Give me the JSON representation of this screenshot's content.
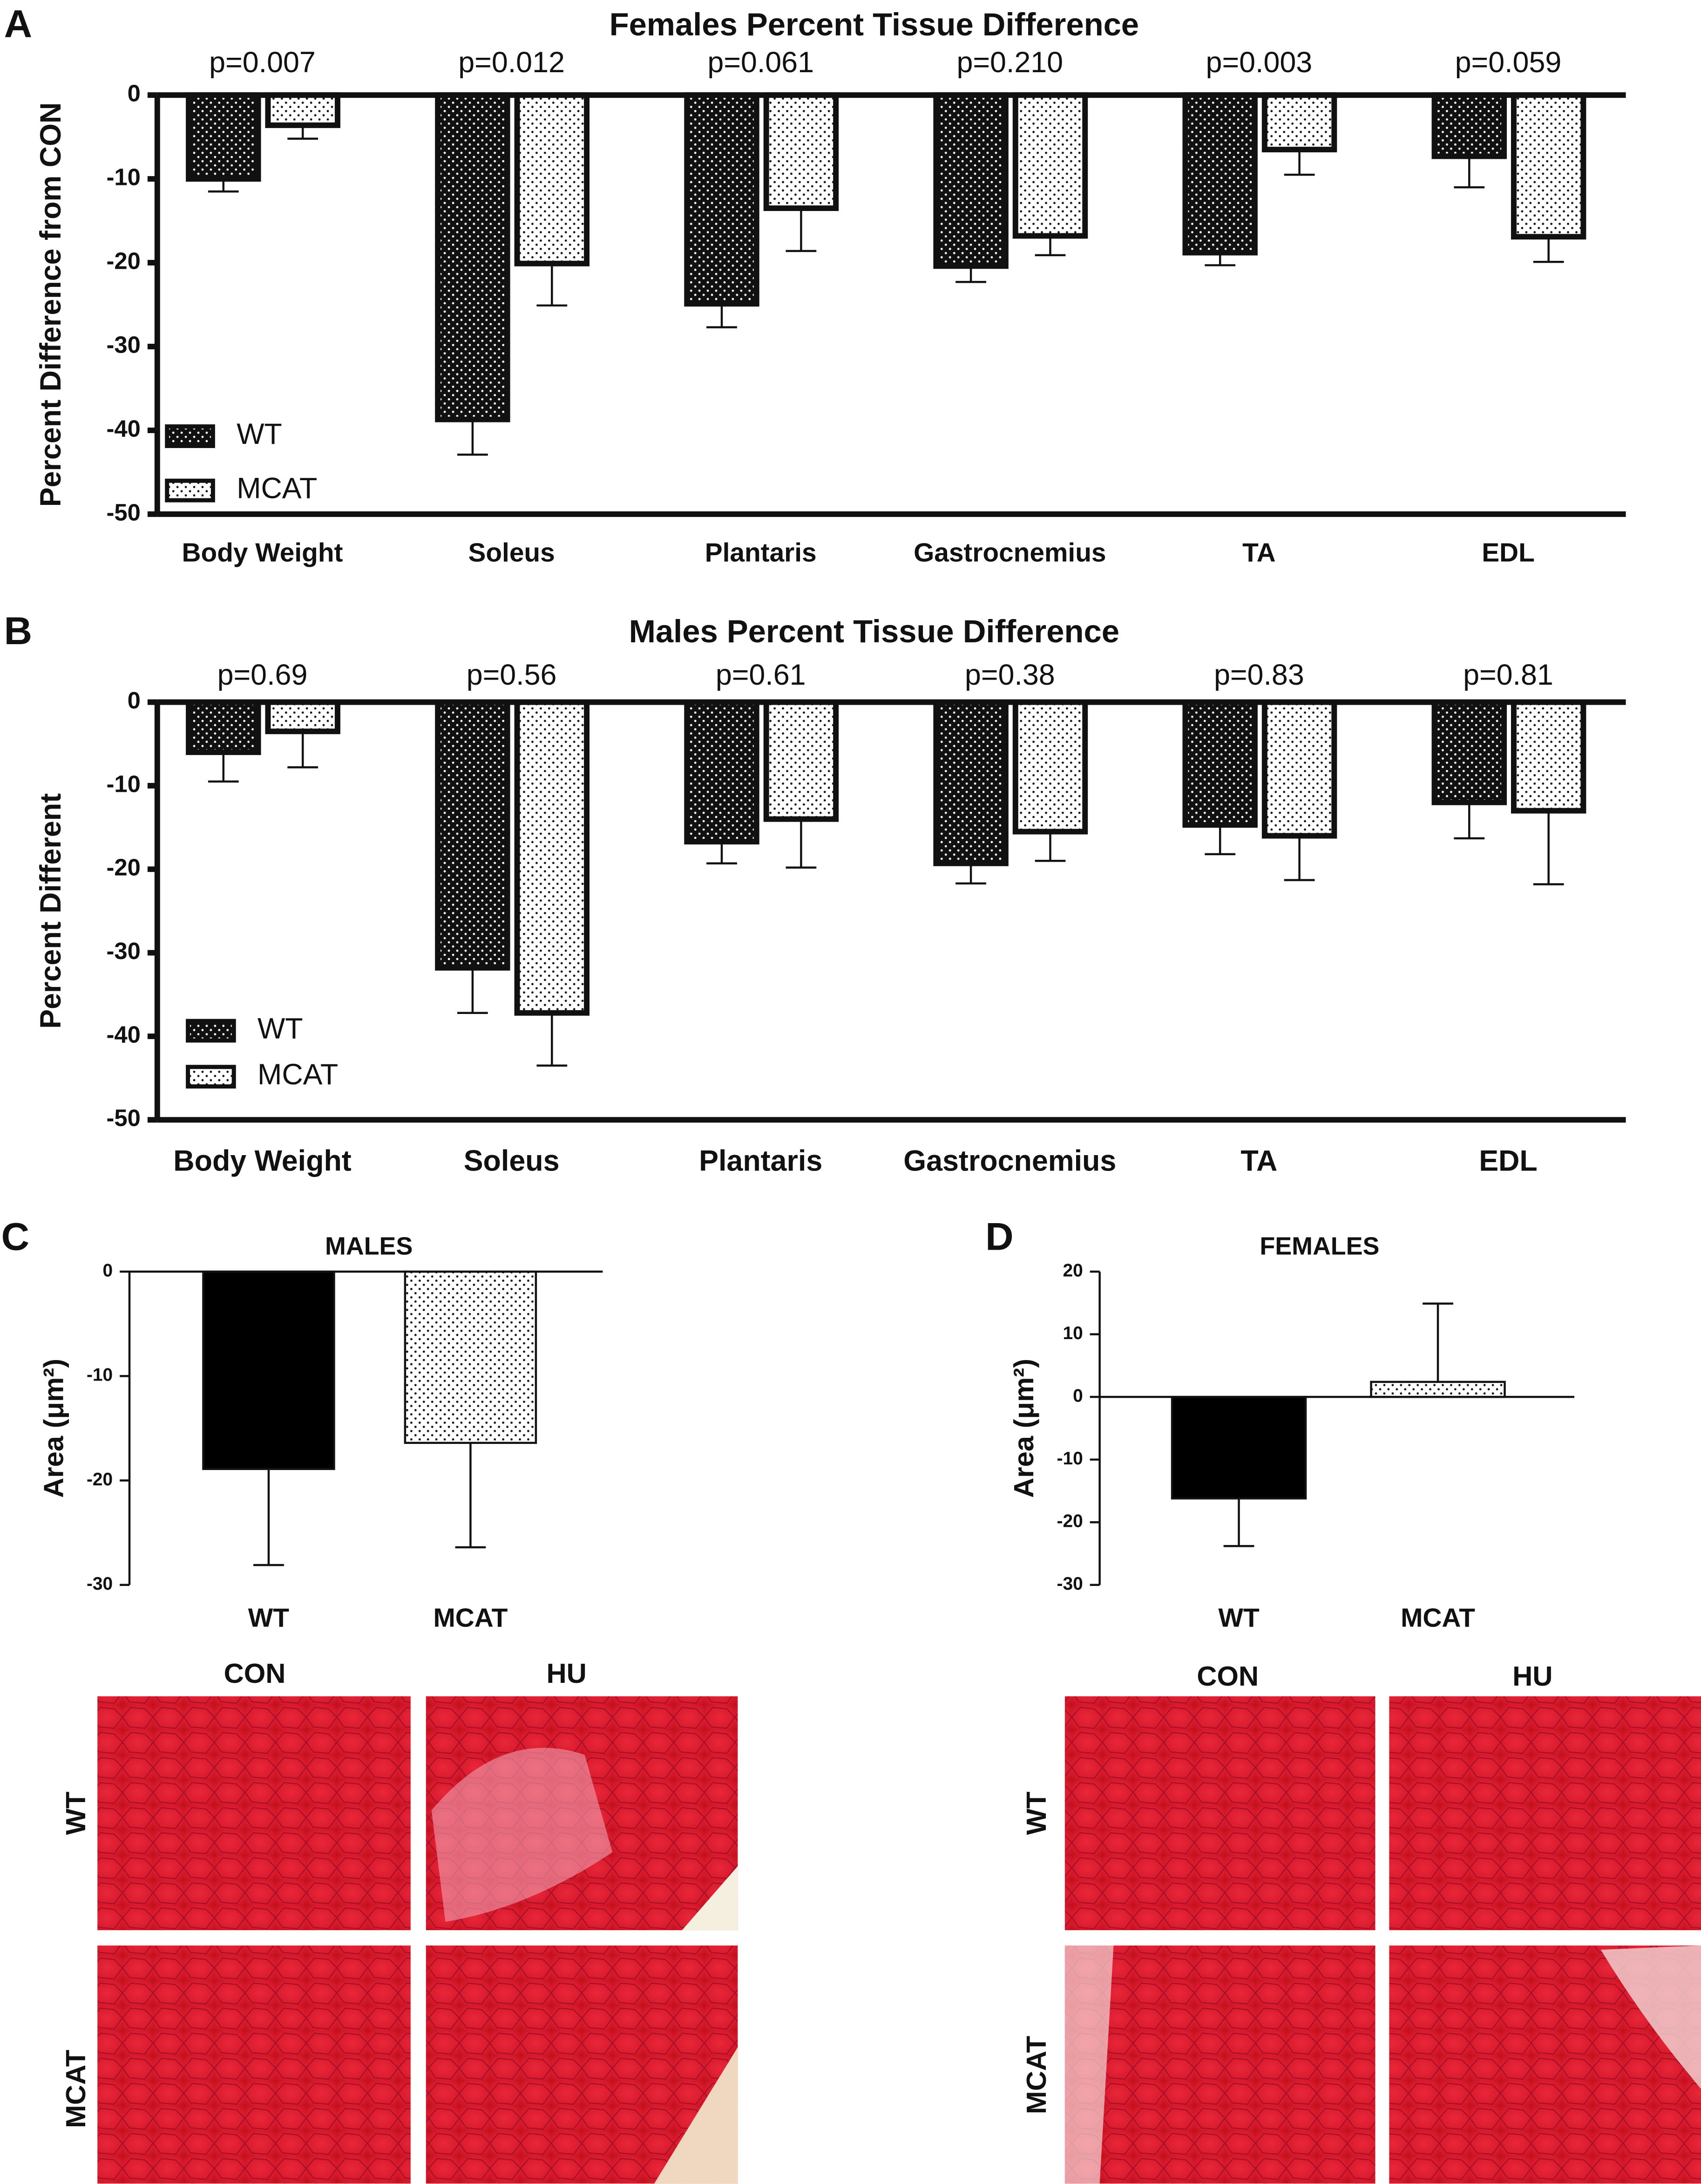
{
  "chart_data": [
    {
      "type": "bar",
      "label": "A",
      "title": "Females Percent Tissue Difference",
      "y_label": "Percent Difference from CON",
      "categories": [
        "Body Weight",
        "Soleus",
        "Plantaris",
        "Gastrocnemius",
        "TA",
        "EDL"
      ],
      "annotations": [
        "p=0.007",
        "p=0.012",
        "p=0.061",
        "p=0.210",
        "p=0.003",
        "p=0.059"
      ],
      "series": [
        {
          "name": "WT",
          "color": "#111111",
          "dot_color": "#ffffff",
          "values": [
            -10,
            -38.7,
            -24.9,
            -20.4,
            -18.8,
            -7.3
          ],
          "errors": [
            1.5,
            4.2,
            2.8,
            1.9,
            1.5,
            3.7
          ]
        },
        {
          "name": "MCAT",
          "color": "#ffffff",
          "dot_color": "#111111",
          "values": [
            -3.6,
            -20.1,
            -13.5,
            -16.8,
            -6.5,
            -16.9
          ],
          "errors": [
            1.6,
            5,
            5.1,
            2.3,
            3,
            3
          ]
        }
      ],
      "ylim": [
        -50,
        0
      ],
      "yticks": [
        0,
        -10,
        -20,
        -30,
        -40,
        -50
      ],
      "legend": "bottom-left"
    },
    {
      "type": "bar",
      "label": "B",
      "title": "Males Percent Tissue Difference",
      "y_label": "Percent Different",
      "categories": [
        "Body Weight",
        "Soleus",
        "Plantaris",
        "Gastrocnemius",
        "TA",
        "EDL"
      ],
      "annotations": [
        "p=0.69",
        "p=0.56",
        "p=0.61",
        "p=0.38",
        "p=0.83",
        "p=0.81"
      ],
      "series": [
        {
          "name": "WT",
          "color": "#111111",
          "dot_color": "#ffffff",
          "values": [
            -6,
            -31.8,
            -16.7,
            -19.3,
            -14.7,
            -12
          ],
          "errors": [
            3.5,
            5.4,
            2.6,
            2.4,
            3.5,
            4.3
          ]
        },
        {
          "name": "MCAT",
          "color": "#ffffff",
          "dot_color": "#111111",
          "values": [
            -3.5,
            -37.2,
            -14,
            -15.5,
            -16,
            -13
          ],
          "errors": [
            4.3,
            6.3,
            5.8,
            3.5,
            5.3,
            8.8
          ]
        }
      ],
      "ylim": [
        -50,
        0
      ],
      "yticks": [
        0,
        -10,
        -20,
        -30,
        -40,
        -50
      ],
      "legend": "bottom-left"
    },
    {
      "type": "bar",
      "label": "C",
      "title": "MALES",
      "y_label": "Area (μm²)",
      "categories": [
        "WT",
        "MCAT"
      ],
      "series": [
        {
          "colors": [
            "#000000",
            "#ffffff"
          ],
          "dot_colors": [
            "#000000",
            "#111111"
          ],
          "values": [
            -18.9,
            -16.4
          ],
          "errors": [
            9.2,
            10
          ]
        }
      ],
      "ylim": [
        -30,
        0
      ],
      "yticks": [
        0,
        -10,
        -20,
        -30
      ]
    },
    {
      "type": "bar",
      "label": "D",
      "title": "FEMALES",
      "y_label": "Area (μm²)",
      "categories": [
        "WT",
        "MCAT"
      ],
      "series": [
        {
          "colors": [
            "#000000",
            "#ffffff"
          ],
          "dot_colors": [
            "#000000",
            "#111111"
          ],
          "values": [
            -16.2,
            2.4
          ],
          "errors": [
            7.6,
            12.5
          ]
        }
      ],
      "ylim": [
        -30,
        20
      ],
      "yticks": [
        20,
        10,
        0,
        -10,
        -20,
        -30
      ]
    }
  ],
  "micrographs": [
    {
      "columns": [
        "CON",
        "HU"
      ],
      "rows": [
        "WT",
        "MCAT"
      ]
    },
    {
      "columns": [
        "CON",
        "HU"
      ],
      "rows": [
        "WT",
        "MCAT"
      ]
    }
  ]
}
